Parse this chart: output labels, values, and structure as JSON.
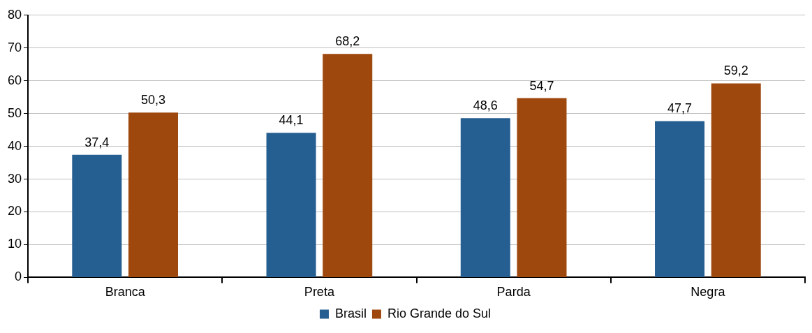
{
  "chart_data": {
    "type": "bar",
    "categories": [
      "Branca",
      "Preta",
      "Parda",
      "Negra"
    ],
    "series": [
      {
        "name": "Brasil",
        "color": "#255e91",
        "values": [
          37.4,
          44.1,
          48.6,
          47.7
        ],
        "value_labels": [
          "37,4",
          "44,1",
          "48,6",
          "47,7"
        ]
      },
      {
        "name": "Rio Grande do Sul",
        "color": "#9e480e",
        "values": [
          50.3,
          68.2,
          54.7,
          59.2
        ],
        "value_labels": [
          "50,3",
          "68,2",
          "54,7",
          "59,2"
        ]
      }
    ],
    "ylim": [
      0,
      80
    ],
    "yticks": [
      0,
      10,
      20,
      30,
      40,
      50,
      60,
      70,
      80
    ],
    "grid": "y",
    "legend": "bottom"
  }
}
